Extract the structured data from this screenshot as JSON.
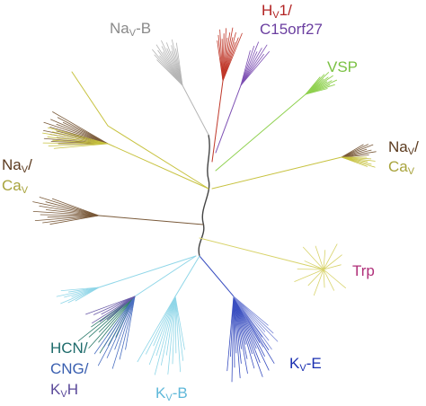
{
  "labels": {
    "nav_b": {
      "prefix": "Na",
      "sub": "V",
      "suffix": "-B",
      "color": "#8a8a8a"
    },
    "hv1": {
      "prefix": "H",
      "sub": "V",
      "suffix": "1/",
      "color": "#b22222"
    },
    "c15orf27": {
      "text": "C15orf27",
      "color": "#6b3fa0"
    },
    "vsp": {
      "text": "VSP",
      "color": "#7ac143"
    },
    "nav_right": {
      "prefix": "Na",
      "sub": "V",
      "suffix": "/",
      "color": "#5b3a1e"
    },
    "cav_right": {
      "prefix": "Ca",
      "sub": "V",
      "suffix": "",
      "color": "#a8a33c"
    },
    "nav_left": {
      "prefix": "Na",
      "sub": "V",
      "suffix": "/",
      "color": "#5b3a1e"
    },
    "cav_left": {
      "prefix": "Ca",
      "sub": "V",
      "suffix": "",
      "color": "#a8a33c"
    },
    "trp": {
      "text": "Trp",
      "color": "#b0307a"
    },
    "kv_e": {
      "prefix": "K",
      "sub": "V",
      "suffix": "-E",
      "color": "#1a2fb0"
    },
    "kv_b": {
      "prefix": "K",
      "sub": "V",
      "suffix": "-B",
      "color": "#5fb8d9"
    },
    "hcn": {
      "text": "HCN/",
      "color": "#1e6b6b"
    },
    "cng": {
      "text": "CNG/",
      "color": "#3a5fb0"
    },
    "kvh": {
      "prefix": "K",
      "sub": "V",
      "suffix": "H",
      "color": "#5b4a9a"
    }
  },
  "colors": {
    "trunk": "#444444",
    "nav_b": "#b5b5b5",
    "hv1": "#c0392b",
    "c15orf27": "#7d4fb3",
    "vsp": "#8fd14f",
    "nav_cav_right_brown": "#7a5a3a",
    "nav_cav_right_olive": "#c7c23f",
    "nav_cav_left_brown": "#7a5a3a",
    "nav_cav_left_olive": "#c7c23f",
    "trp": "#d8d36a",
    "kv_e": "#3a4fc0",
    "kv_e_light": "#7a88d8",
    "kv_b": "#8fd6e8",
    "hcn": "#2a7a6a",
    "cng": "#4a6fc0",
    "kvh": "#6a5aa8"
  }
}
